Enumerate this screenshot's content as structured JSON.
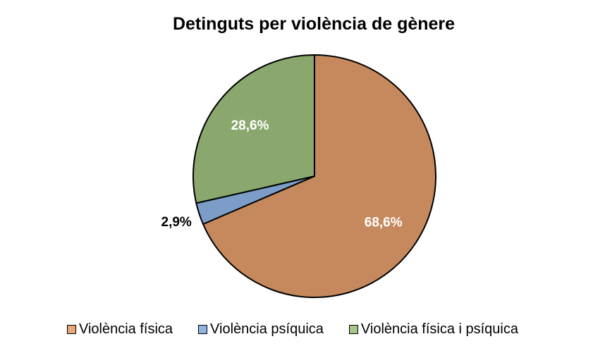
{
  "chart_data": {
    "type": "pie",
    "title": "Detinguts per violència de gènere",
    "categories": [
      "Violència física",
      "Violència psíquica",
      "Violència física i psíquica"
    ],
    "values": [
      68.6,
      2.9,
      28.6
    ],
    "data_labels": [
      "68,6%",
      "2,9%",
      "28,6%"
    ],
    "colors": [
      "#C5895D",
      "#7B9DC7",
      "#8AA86E"
    ],
    "legend_colors": [
      "#E6A878",
      "#8DB4E2",
      "#A7C78A"
    ],
    "legend_position": "bottom"
  }
}
